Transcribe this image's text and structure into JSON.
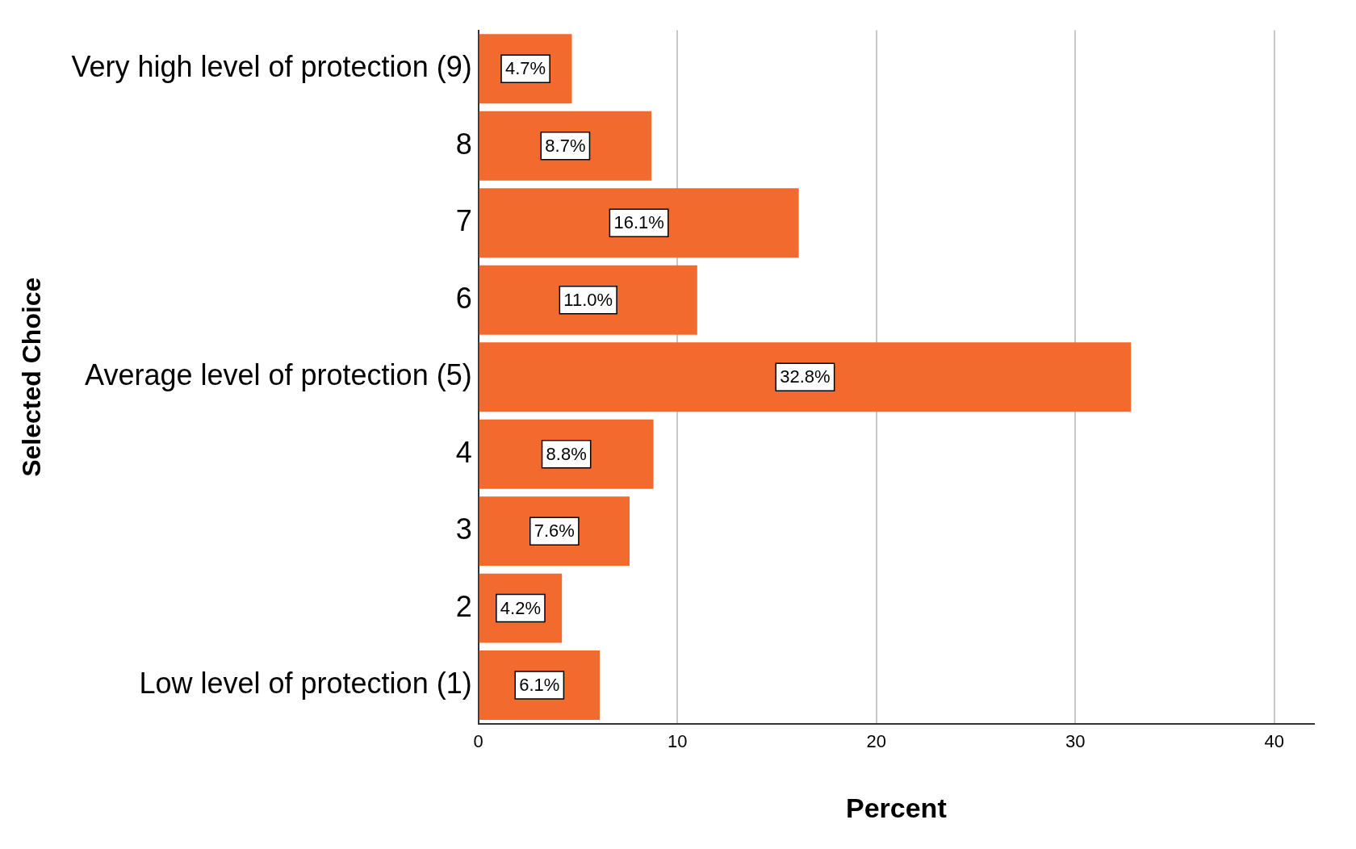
{
  "chart_data": {
    "type": "bar",
    "orientation": "horizontal",
    "xlabel": "Percent",
    "ylabel": "Selected Choice",
    "categories": [
      "Very high level of protection (9)",
      "8",
      "7",
      "6",
      "Average level of protection (5)",
      "4",
      "3",
      "2",
      "Low level of protection (1)"
    ],
    "values": [
      4.7,
      8.7,
      16.1,
      11.0,
      32.8,
      8.8,
      7.6,
      4.2,
      6.1
    ],
    "value_labels": [
      "4.7%",
      "8.7%",
      "16.1%",
      "11.0%",
      "32.8%",
      "8.8%",
      "7.6%",
      "4.2%",
      "6.1%"
    ],
    "color": "#f26a2e",
    "xlim": [
      0,
      42
    ],
    "xticks": [
      0,
      10,
      20,
      30,
      40
    ],
    "grid": "x",
    "legend": false
  }
}
